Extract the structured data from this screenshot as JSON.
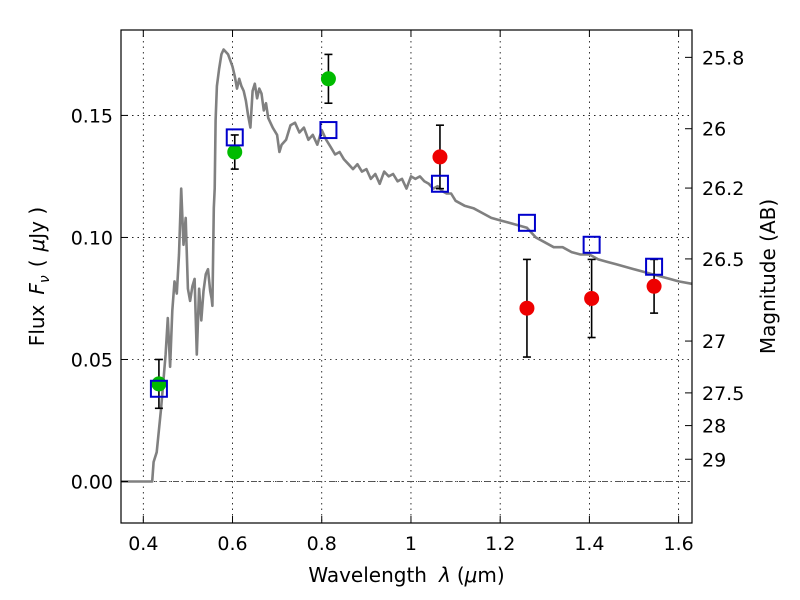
{
  "chart_data": {
    "type": "scatter",
    "title": "",
    "xlabel_prefix": "Wavelength",
    "xlabel_symbol": "λ",
    "xlabel_unit_open": "(",
    "xlabel_unit_mu": "μ",
    "xlabel_unit_rest": "m)",
    "ylabel_prefix": "Flux",
    "ylabel_symbol": "F",
    "ylabel_sub": "ν",
    "ylabel_unit_open": "(",
    "ylabel_unit_mu": "μ",
    "ylabel_unit_rest": "Jy )",
    "y2label": "Magnitude (AB)",
    "xlim": [
      0.35,
      1.63
    ],
    "ylim": [
      -0.017,
      0.185
    ],
    "grid": true,
    "x_ticks": [
      0.4,
      0.6,
      0.8,
      1.0,
      1.2,
      1.4,
      1.6
    ],
    "x_tick_labels": [
      "0.4",
      "0.6",
      "0.8",
      "1",
      "1.2",
      "1.4",
      "1.6"
    ],
    "y_ticks": [
      0.0,
      0.05,
      0.1,
      0.15
    ],
    "y_tick_labels": [
      "0.00",
      "0.05",
      "0.10",
      "0.15"
    ],
    "y2_ticks": [
      25.8,
      26,
      26.2,
      26.5,
      27,
      27.5,
      28,
      29
    ],
    "y2_tick_labels": [
      "25.8",
      "26",
      "26.2",
      "26.5",
      "27",
      "27.5",
      "28",
      "29"
    ],
    "zero_line": 0.0,
    "colors": {
      "model": "#808080",
      "model_photometry": "#0000cc",
      "observed_green": "#00bb00",
      "observed_red": "#ee0000",
      "errorbar": "#000000"
    },
    "series": [
      {
        "name": "model spectrum",
        "kind": "line",
        "x": [
          0.35,
          0.42,
          0.423,
          0.43,
          0.44,
          0.45,
          0.455,
          0.46,
          0.465,
          0.47,
          0.475,
          0.48,
          0.485,
          0.49,
          0.495,
          0.5,
          0.505,
          0.51,
          0.515,
          0.52,
          0.525,
          0.53,
          0.535,
          0.54,
          0.545,
          0.55,
          0.553,
          0.555,
          0.558,
          0.56,
          0.562,
          0.565,
          0.57,
          0.575,
          0.58,
          0.59,
          0.6,
          0.605,
          0.61,
          0.615,
          0.62,
          0.625,
          0.63,
          0.635,
          0.64,
          0.645,
          0.65,
          0.655,
          0.66,
          0.665,
          0.67,
          0.675,
          0.68,
          0.69,
          0.7,
          0.705,
          0.71,
          0.72,
          0.73,
          0.74,
          0.75,
          0.76,
          0.77,
          0.78,
          0.79,
          0.8,
          0.81,
          0.82,
          0.83,
          0.84,
          0.85,
          0.86,
          0.87,
          0.88,
          0.89,
          0.9,
          0.91,
          0.92,
          0.93,
          0.94,
          0.95,
          0.96,
          0.97,
          0.98,
          0.99,
          1.0,
          1.01,
          1.02,
          1.03,
          1.04,
          1.05,
          1.06,
          1.07,
          1.08,
          1.09,
          1.1,
          1.12,
          1.14,
          1.16,
          1.18,
          1.2,
          1.22,
          1.24,
          1.26,
          1.28,
          1.3,
          1.32,
          1.34,
          1.36,
          1.38,
          1.4,
          1.42,
          1.44,
          1.46,
          1.48,
          1.5,
          1.52,
          1.54,
          1.56,
          1.58,
          1.6,
          1.63
        ],
        "y": [
          0.0,
          0.0,
          0.008,
          0.012,
          0.03,
          0.052,
          0.067,
          0.047,
          0.07,
          0.082,
          0.077,
          0.093,
          0.12,
          0.097,
          0.108,
          0.079,
          0.074,
          0.08,
          0.083,
          0.052,
          0.079,
          0.066,
          0.078,
          0.085,
          0.087,
          0.078,
          0.075,
          0.072,
          0.112,
          0.12,
          0.148,
          0.162,
          0.169,
          0.175,
          0.177,
          0.175,
          0.17,
          0.166,
          0.161,
          0.165,
          0.162,
          0.16,
          0.156,
          0.15,
          0.145,
          0.16,
          0.163,
          0.157,
          0.161,
          0.159,
          0.152,
          0.155,
          0.149,
          0.145,
          0.142,
          0.135,
          0.138,
          0.14,
          0.146,
          0.147,
          0.143,
          0.145,
          0.14,
          0.142,
          0.138,
          0.144,
          0.14,
          0.137,
          0.134,
          0.135,
          0.132,
          0.13,
          0.128,
          0.13,
          0.127,
          0.128,
          0.124,
          0.126,
          0.122,
          0.127,
          0.125,
          0.126,
          0.123,
          0.124,
          0.12,
          0.125,
          0.124,
          0.125,
          0.123,
          0.122,
          0.12,
          0.121,
          0.119,
          0.118,
          0.118,
          0.115,
          0.113,
          0.112,
          0.11,
          0.108,
          0.107,
          0.106,
          0.105,
          0.104,
          0.1,
          0.098,
          0.096,
          0.096,
          0.094,
          0.093,
          0.093,
          0.091,
          0.09,
          0.089,
          0.088,
          0.087,
          0.086,
          0.085,
          0.084,
          0.083,
          0.082,
          0.081
        ]
      },
      {
        "name": "model photometry",
        "kind": "open-square",
        "x": [
          0.435,
          0.605,
          0.815,
          1.065,
          1.26,
          1.405,
          1.545
        ],
        "y": [
          0.038,
          0.141,
          0.144,
          0.122,
          0.106,
          0.097,
          0.088
        ]
      },
      {
        "name": "observed (green)",
        "kind": "filled-circle",
        "x": [
          0.435,
          0.605,
          0.815
        ],
        "y": [
          0.04,
          0.135,
          0.165
        ],
        "err": [
          0.01,
          0.007,
          0.01
        ]
      },
      {
        "name": "observed (red)",
        "kind": "filled-circle",
        "x": [
          1.065,
          1.26,
          1.405,
          1.545
        ],
        "y": [
          0.133,
          0.071,
          0.075,
          0.08
        ],
        "err": [
          0.013,
          0.02,
          0.016,
          0.011
        ]
      }
    ]
  }
}
